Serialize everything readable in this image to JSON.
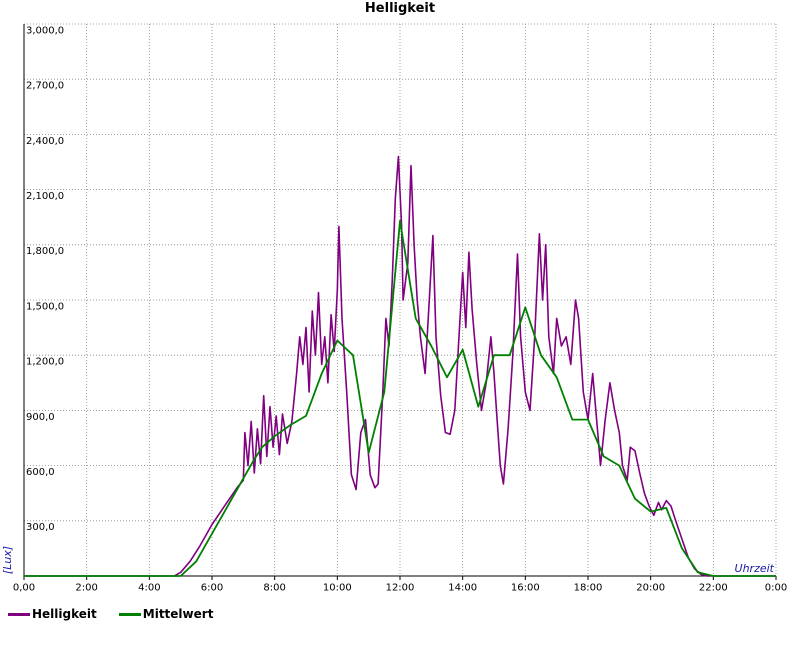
{
  "chart_data": {
    "type": "line",
    "title": "Helligkeit",
    "xlabel": "Uhrzeit",
    "ylabel": "[Lux]",
    "x_ticks": [
      "0,00",
      "2:00",
      "4:00",
      "6:00",
      "8:00",
      "10:00",
      "12:00",
      "14:00",
      "16:00",
      "18:00",
      "20:00",
      "22:00",
      "0:00"
    ],
    "y_ticks": [
      "300,0",
      "600,0",
      "900,0",
      "1,200,0",
      "1,500,0",
      "1,800,0",
      "2,100,0",
      "2,400,0",
      "2,700,0",
      "3,000,0"
    ],
    "xlim": [
      0,
      24
    ],
    "ylim": [
      0,
      3000
    ],
    "grid": true,
    "legend_position": "bottom-left",
    "series": [
      {
        "name": "Helligkeit",
        "color": "#800080",
        "points": [
          [
            0,
            0
          ],
          [
            4.8,
            0
          ],
          [
            5.0,
            20
          ],
          [
            5.3,
            80
          ],
          [
            5.6,
            160
          ],
          [
            6.0,
            280
          ],
          [
            6.4,
            380
          ],
          [
            6.8,
            480
          ],
          [
            7.0,
            520
          ],
          [
            7.05,
            780
          ],
          [
            7.15,
            600
          ],
          [
            7.25,
            840
          ],
          [
            7.35,
            560
          ],
          [
            7.45,
            800
          ],
          [
            7.55,
            610
          ],
          [
            7.65,
            980
          ],
          [
            7.75,
            650
          ],
          [
            7.85,
            920
          ],
          [
            7.95,
            700
          ],
          [
            8.05,
            870
          ],
          [
            8.15,
            660
          ],
          [
            8.25,
            880
          ],
          [
            8.4,
            720
          ],
          [
            8.55,
            840
          ],
          [
            8.7,
            1100
          ],
          [
            8.8,
            1300
          ],
          [
            8.9,
            1150
          ],
          [
            9.0,
            1350
          ],
          [
            9.1,
            1000
          ],
          [
            9.2,
            1440
          ],
          [
            9.3,
            1200
          ],
          [
            9.4,
            1540
          ],
          [
            9.5,
            1150
          ],
          [
            9.6,
            1300
          ],
          [
            9.7,
            1050
          ],
          [
            9.8,
            1420
          ],
          [
            9.9,
            1220
          ],
          [
            10.0,
            1550
          ],
          [
            10.05,
            1900
          ],
          [
            10.15,
            1400
          ],
          [
            10.3,
            1000
          ],
          [
            10.45,
            550
          ],
          [
            10.6,
            470
          ],
          [
            10.75,
            780
          ],
          [
            10.9,
            850
          ],
          [
            11.05,
            550
          ],
          [
            11.2,
            480
          ],
          [
            11.3,
            500
          ],
          [
            11.45,
            1000
          ],
          [
            11.55,
            1400
          ],
          [
            11.65,
            1250
          ],
          [
            11.75,
            1600
          ],
          [
            11.85,
            2050
          ],
          [
            11.95,
            2280
          ],
          [
            12.05,
            1900
          ],
          [
            12.1,
            1500
          ],
          [
            12.25,
            1700
          ],
          [
            12.35,
            2230
          ],
          [
            12.45,
            1800
          ],
          [
            12.55,
            1500
          ],
          [
            12.65,
            1300
          ],
          [
            12.8,
            1100
          ],
          [
            12.95,
            1550
          ],
          [
            13.05,
            1850
          ],
          [
            13.15,
            1300
          ],
          [
            13.3,
            980
          ],
          [
            13.45,
            780
          ],
          [
            13.6,
            770
          ],
          [
            13.75,
            900
          ],
          [
            13.9,
            1350
          ],
          [
            14.0,
            1650
          ],
          [
            14.1,
            1350
          ],
          [
            14.2,
            1760
          ],
          [
            14.3,
            1450
          ],
          [
            14.45,
            1150
          ],
          [
            14.6,
            900
          ],
          [
            14.75,
            1050
          ],
          [
            14.9,
            1300
          ],
          [
            15.0,
            1100
          ],
          [
            15.1,
            850
          ],
          [
            15.2,
            600
          ],
          [
            15.3,
            500
          ],
          [
            15.45,
            800
          ],
          [
            15.6,
            1200
          ],
          [
            15.75,
            1750
          ],
          [
            15.85,
            1300
          ],
          [
            16.0,
            1000
          ],
          [
            16.15,
            900
          ],
          [
            16.3,
            1300
          ],
          [
            16.45,
            1860
          ],
          [
            16.55,
            1500
          ],
          [
            16.65,
            1800
          ],
          [
            16.75,
            1300
          ],
          [
            16.9,
            1100
          ],
          [
            17.0,
            1400
          ],
          [
            17.15,
            1250
          ],
          [
            17.3,
            1300
          ],
          [
            17.45,
            1150
          ],
          [
            17.6,
            1500
          ],
          [
            17.7,
            1400
          ],
          [
            17.85,
            1000
          ],
          [
            18.0,
            850
          ],
          [
            18.15,
            1100
          ],
          [
            18.3,
            800
          ],
          [
            18.4,
            600
          ],
          [
            18.55,
            850
          ],
          [
            18.7,
            1050
          ],
          [
            18.85,
            900
          ],
          [
            19.0,
            780
          ],
          [
            19.1,
            600
          ],
          [
            19.25,
            520
          ],
          [
            19.35,
            700
          ],
          [
            19.5,
            680
          ],
          [
            19.65,
            560
          ],
          [
            19.8,
            450
          ],
          [
            19.95,
            380
          ],
          [
            20.1,
            330
          ],
          [
            20.25,
            400
          ],
          [
            20.35,
            360
          ],
          [
            20.5,
            410
          ],
          [
            20.65,
            380
          ],
          [
            20.8,
            300
          ],
          [
            21.0,
            200
          ],
          [
            21.2,
            100
          ],
          [
            21.4,
            40
          ],
          [
            21.6,
            10
          ],
          [
            21.8,
            0
          ],
          [
            24.0,
            0
          ]
        ]
      },
      {
        "name": "Mittelwert",
        "color": "#008000",
        "points": [
          [
            0,
            0
          ],
          [
            5.0,
            0
          ],
          [
            5.5,
            80
          ],
          [
            6.0,
            230
          ],
          [
            6.5,
            380
          ],
          [
            7.0,
            530
          ],
          [
            7.3,
            620
          ],
          [
            7.6,
            700
          ],
          [
            8.0,
            760
          ],
          [
            8.5,
            820
          ],
          [
            9.0,
            870
          ],
          [
            9.5,
            1100
          ],
          [
            10.0,
            1280
          ],
          [
            10.5,
            1200
          ],
          [
            11.0,
            670
          ],
          [
            11.5,
            1000
          ],
          [
            12.0,
            1930
          ],
          [
            12.5,
            1400
          ],
          [
            13.0,
            1250
          ],
          [
            13.5,
            1080
          ],
          [
            14.0,
            1230
          ],
          [
            14.5,
            920
          ],
          [
            15.0,
            1200
          ],
          [
            15.5,
            1200
          ],
          [
            16.0,
            1460
          ],
          [
            16.5,
            1200
          ],
          [
            17.0,
            1080
          ],
          [
            17.5,
            850
          ],
          [
            18.0,
            850
          ],
          [
            18.5,
            650
          ],
          [
            19.0,
            600
          ],
          [
            19.5,
            420
          ],
          [
            20.0,
            350
          ],
          [
            20.5,
            370
          ],
          [
            21.0,
            150
          ],
          [
            21.5,
            20
          ],
          [
            22.0,
            0
          ],
          [
            24.0,
            0
          ]
        ]
      }
    ]
  }
}
